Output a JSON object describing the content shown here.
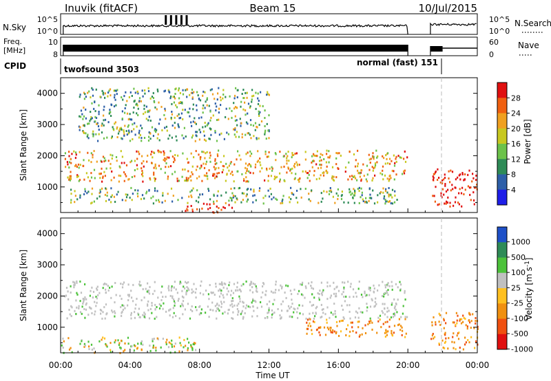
{
  "header": {
    "station": "Inuvik (fitACF)",
    "beam": "Beam 15",
    "date": "10/Jul/2015"
  },
  "panels": {
    "nsky": {
      "label": "N.Sky",
      "scale_top": "10^5",
      "scale_bottom": "10^0",
      "right_label": "N.Search",
      "right_top": "10^5",
      "right_bottom": "10^0"
    },
    "freq": {
      "label_line1": "Freq.",
      "label_line2": "[MHz]",
      "left_top": "10",
      "left_bottom": "8",
      "right_top": "60",
      "right_bottom": "0",
      "right_label": "Nave"
    },
    "cpid": {
      "label": "CPID",
      "program_1": "twofsound 3503",
      "program_2": "normal (fast) 151"
    }
  },
  "x_axis": {
    "label": "Time UT",
    "ticks": [
      "00:00",
      "04:00",
      "08:00",
      "12:00",
      "16:00",
      "20:00",
      "00:00"
    ]
  },
  "chart_data": [
    {
      "type": "heatmap",
      "title": "",
      "xlabel": "Time UT",
      "ylabel": "Slant Range [km]",
      "xlim": [
        0,
        24
      ],
      "ylim": [
        180,
        4500
      ],
      "yticks": [
        "1000",
        "2000",
        "3000",
        "4000"
      ],
      "colorbar": {
        "label": "Power [dB]",
        "ticks": [
          "4",
          "8",
          "12",
          "16",
          "20",
          "24",
          "28"
        ],
        "range": [
          0,
          30
        ],
        "colors": [
          "#1e1ee8",
          "#2d5fa8",
          "#2e8b57",
          "#6cc24a",
          "#c8c820",
          "#f0a020",
          "#f06010",
          "#e01010"
        ]
      },
      "bands": [
        {
          "t0": 0.2,
          "t1": 20.0,
          "r0": 1200,
          "r1": 2200,
          "level": "high"
        },
        {
          "t0": 0.5,
          "t1": 19.5,
          "r0": 500,
          "r1": 1000,
          "level": "mid"
        },
        {
          "t0": 7.0,
          "t1": 10.0,
          "r0": 200,
          "r1": 500,
          "level": "max"
        },
        {
          "t0": 1.0,
          "t1": 12.0,
          "r0": 2500,
          "r1": 4200,
          "level": "mid"
        },
        {
          "t0": 21.3,
          "t1": 24.0,
          "r0": 400,
          "r1": 1600,
          "level": "max"
        }
      ]
    },
    {
      "type": "heatmap",
      "title": "",
      "xlabel": "Time UT",
      "ylabel": "Slant Range [km]",
      "xlim": [
        0,
        24
      ],
      "ylim": [
        180,
        4500
      ],
      "yticks": [
        "1000",
        "2000",
        "3000",
        "4000"
      ],
      "colorbar": {
        "label": "Velocity [m s^-1]",
        "ticks": [
          "1000",
          "500",
          "100",
          "25",
          "-25",
          "-100",
          "-500",
          "-1000"
        ],
        "range": [
          -1000,
          1000
        ],
        "colors": [
          "#1e50c8",
          "#2e8b57",
          "#4cc23a",
          "#c0c0c0",
          "#ffc020",
          "#f09010",
          "#f05010",
          "#e01010"
        ]
      },
      "bands": [
        {
          "t0": 0.2,
          "t1": 20.0,
          "r0": 1300,
          "r1": 2500,
          "level": "ground"
        },
        {
          "t0": 14.0,
          "t1": 20.0,
          "r0": 700,
          "r1": 1300,
          "level": "negative"
        },
        {
          "t0": 0.0,
          "t1": 8.0,
          "r0": 200,
          "r1": 700,
          "level": "mixed"
        },
        {
          "t0": 21.3,
          "t1": 24.0,
          "r0": 300,
          "r1": 1500,
          "level": "negative"
        }
      ]
    }
  ]
}
